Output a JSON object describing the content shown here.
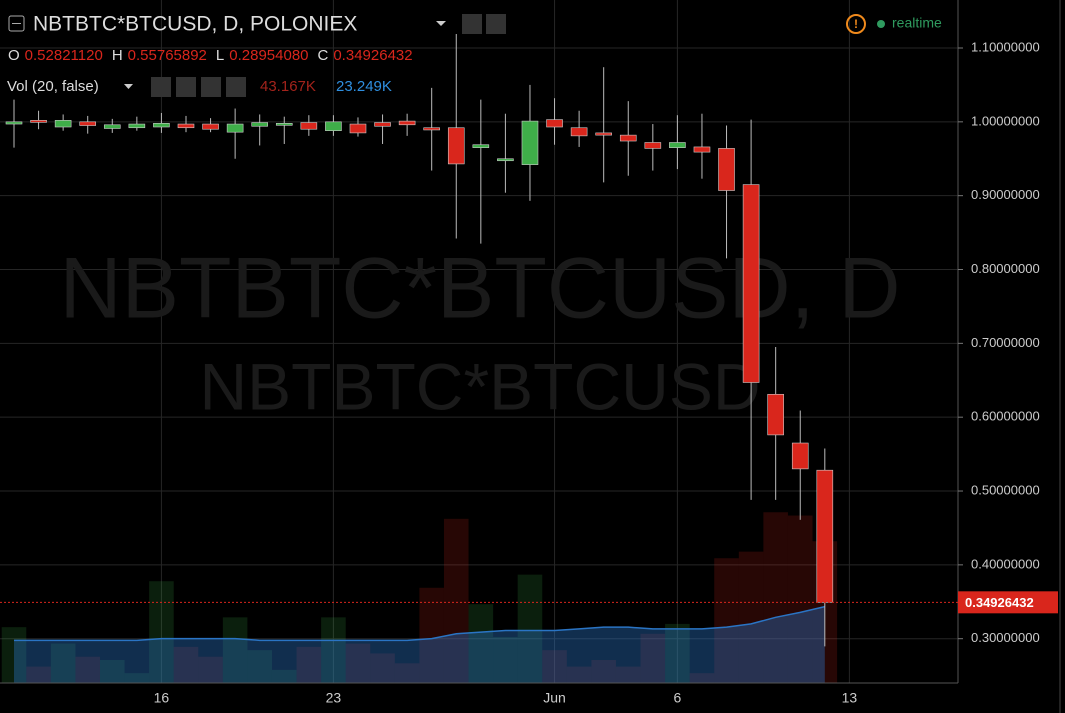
{
  "chart_data": {
    "type": "candlestick",
    "title": "NBTBTC*BTCUSD, D, POLONIEX",
    "status": "realtime",
    "watermark": [
      "NBTBTC*BTCUSD, D",
      "NBTBTC*BTCUSD"
    ],
    "legend_values": [
      {
        "label": "O",
        "value": "0.52821120"
      },
      {
        "label": "H",
        "value": "0.55765892"
      },
      {
        "label": "L",
        "value": "0.28954080"
      },
      {
        "label": "C",
        "value": "0.34926432"
      }
    ],
    "categories": [
      null,
      null,
      null,
      null,
      null,
      null,
      "16",
      null,
      null,
      null,
      null,
      null,
      null,
      "23",
      null,
      null,
      null,
      null,
      null,
      null,
      null,
      null,
      "Jun",
      null,
      null,
      null,
      null,
      "6",
      null,
      null,
      null,
      null,
      null,
      null,
      "13"
    ],
    "open": [
      0.997,
      1.002,
      0.993,
      1.0,
      0.991,
      0.992,
      0.993,
      0.997,
      0.997,
      0.986,
      0.994,
      0.996,
      0.999,
      0.988,
      0.997,
      0.999,
      1.001,
      0.992,
      0.992,
      0.965,
      0.949,
      0.942,
      1.003,
      0.992,
      0.985,
      0.982,
      0.972,
      0.965,
      0.966,
      0.964,
      0.915,
      0.631,
      0.565,
      0.5282112,
      null
    ],
    "high": [
      1.03,
      1.015,
      1.01,
      1.008,
      1.004,
      1.007,
      1.012,
      1.008,
      1.005,
      1.018,
      1.01,
      1.007,
      1.009,
      1.009,
      1.006,
      1.01,
      1.011,
      1.046,
      1.119,
      1.03,
      1.011,
      1.05,
      1.032,
      1.015,
      1.074,
      1.028,
      0.997,
      1.009,
      1.011,
      0.995,
      1.003,
      0.695,
      0.609,
      0.55765892,
      null
    ],
    "low": [
      0.965,
      0.99,
      0.988,
      0.984,
      0.985,
      0.988,
      0.985,
      0.986,
      0.986,
      0.95,
      0.968,
      0.97,
      0.981,
      0.981,
      0.98,
      0.97,
      0.981,
      0.934,
      0.842,
      0.835,
      0.904,
      0.893,
      0.969,
      0.966,
      0.918,
      0.927,
      0.934,
      0.936,
      0.923,
      0.815,
      0.488,
      0.488,
      0.461,
      0.2895408,
      null
    ],
    "close": [
      1.0,
      1.0,
      1.002,
      0.995,
      0.996,
      0.997,
      0.998,
      0.992,
      0.99,
      0.997,
      0.999,
      0.998,
      0.99,
      1.0,
      0.985,
      0.994,
      0.996,
      0.989,
      0.943,
      0.969,
      0.95,
      1.001,
      0.993,
      0.981,
      0.982,
      0.974,
      0.964,
      0.972,
      0.959,
      0.907,
      0.647,
      0.576,
      0.53,
      0.34926432,
      null
    ],
    "up_color": "#3fae49",
    "down_color": "#d9261c",
    "volume": {
      "name": "Vol (20, false)",
      "values": [
        17,
        5,
        12,
        8,
        7,
        3,
        31,
        11,
        8,
        20,
        10,
        4,
        11,
        20,
        12,
        9,
        6,
        29,
        50,
        24,
        14,
        33,
        10,
        5,
        7,
        5,
        15,
        18,
        3,
        38,
        40,
        52,
        51,
        43.167,
        null
      ],
      "ma": [
        13,
        13,
        13,
        13,
        13,
        13,
        13.5,
        13.5,
        13.5,
        13.5,
        13,
        13,
        13,
        13,
        13,
        13,
        13,
        13.5,
        15,
        15.5,
        16,
        16,
        16,
        16.5,
        17,
        17,
        16.5,
        16.5,
        16.5,
        17,
        18,
        20,
        21.5,
        23.249,
        null
      ],
      "last_value_label": "43.167K",
      "ma_value_label": "23.249K",
      "ma_color": "#2a74c4"
    },
    "ylim": [
      0.24,
      1.165
    ],
    "yticks": [
      {
        "value": 0.3,
        "label": "0.30000000"
      },
      {
        "value": 0.4,
        "label": "0.40000000"
      },
      {
        "value": 0.5,
        "label": "0.50000000"
      },
      {
        "value": 0.6,
        "label": "0.60000000"
      },
      {
        "value": 0.7,
        "label": "0.70000000"
      },
      {
        "value": 0.8,
        "label": "0.80000000"
      },
      {
        "value": 0.9,
        "label": "0.90000000"
      },
      {
        "value": 1.0,
        "label": "1.00000000"
      },
      {
        "value": 1.1,
        "label": "1.10000000"
      }
    ],
    "grid": true
  }
}
